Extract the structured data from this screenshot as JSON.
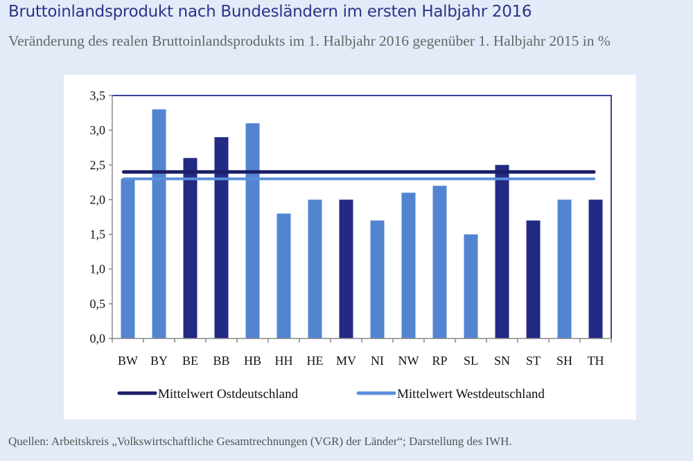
{
  "header": {
    "title": "Bruttoinlandsprodukt nach Bundesländern im ersten Halbjahr 2016",
    "subtitle": "Veränderung des realen Bruttoinlandsprodukts im 1. Halbjahr 2016 gegenüber 1. Halbjahr 2015 in %"
  },
  "footer": {
    "source": "Quellen: Arbeitskreis „Volkswirtschaftliche Gesamtrechnungen (VGR) der Länder“; Darstellung des IWH."
  },
  "colors": {
    "east": "#232a84",
    "west": "#5284d1",
    "east_line": "#1a1f66",
    "west_line": "#5a8fdb",
    "axis": "#888888",
    "frame": "#3b3f9a"
  },
  "chart_data": {
    "type": "bar",
    "title": "Bruttoinlandsprodukt nach Bundesländern im ersten Halbjahr 2016",
    "subtitle": "Veränderung des realen Bruttoinlandsprodukts im 1. Halbjahr 2016 gegenüber 1. Halbjahr 2015 in %",
    "xlabel": "",
    "ylabel": "",
    "categories": [
      "BW",
      "BY",
      "BE",
      "BB",
      "HB",
      "HH",
      "HE",
      "MV",
      "NI",
      "NW",
      "RP",
      "SL",
      "SN",
      "ST",
      "SH",
      "TH"
    ],
    "values": [
      2.3,
      3.3,
      2.6,
      2.9,
      3.1,
      1.8,
      2.0,
      2.0,
      1.7,
      2.1,
      2.2,
      1.5,
      2.5,
      1.7,
      2.0,
      2.0
    ],
    "groups": [
      "west",
      "west",
      "east",
      "east",
      "west",
      "west",
      "west",
      "east",
      "west",
      "west",
      "west",
      "west",
      "east",
      "east",
      "west",
      "east"
    ],
    "ylim": [
      0,
      3.5
    ],
    "yticks": [
      0,
      0.5,
      1.0,
      1.5,
      2.0,
      2.5,
      3.0,
      3.5
    ],
    "ytick_labels": [
      "0,0",
      "0,5",
      "1,0",
      "1,5",
      "2,0",
      "2,5",
      "3,0",
      "3,5"
    ],
    "reference_lines": [
      {
        "name": "Mittelwert Ostdeutschland",
        "value": 2.4,
        "group": "east"
      },
      {
        "name": "Mittelwert Westdeutschland",
        "value": 2.3,
        "group": "west"
      }
    ],
    "legend": {
      "placement": "bottom",
      "entries": [
        "Mittelwert Ostdeutschland",
        "Mittelwert Westdeutschland"
      ]
    },
    "grid": false
  }
}
